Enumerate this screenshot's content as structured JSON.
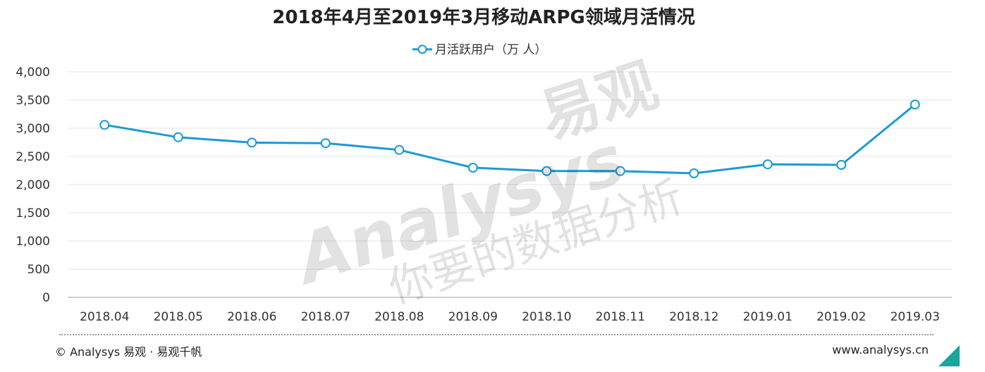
{
  "chart_data": {
    "type": "line",
    "title": "2018年4月至2019年3月移动ARPG领域月活情况",
    "categories": [
      "2018.04",
      "2018.05",
      "2018.06",
      "2018.07",
      "2018.08",
      "2018.09",
      "2018.10",
      "2018.11",
      "2018.12",
      "2019.01",
      "2019.02",
      "2019.03"
    ],
    "series": [
      {
        "name": "月活跃用户（万 人）",
        "values": [
          3060,
          2840,
          2745,
          2735,
          2615,
          2300,
          2240,
          2240,
          2200,
          2360,
          2350,
          3420
        ],
        "color": "#1a9ad6"
      }
    ],
    "y_ticks": [
      "4,000",
      "3,500",
      "3,000",
      "2,500",
      "2,000",
      "1,500",
      "1,000",
      "500",
      "0"
    ],
    "ylim": [
      0,
      4000
    ],
    "ystep": 500,
    "grid": true,
    "legend_position": "top-center"
  },
  "footer": {
    "source": "© Analysys 易观 · 易观千帆",
    "website": "www.analysys.cn",
    "accent_color": "#1aa5a0"
  },
  "watermark": {
    "brand_latin": "Analysys",
    "brand_cn": "易观",
    "slogan": "你要的数据分析"
  }
}
